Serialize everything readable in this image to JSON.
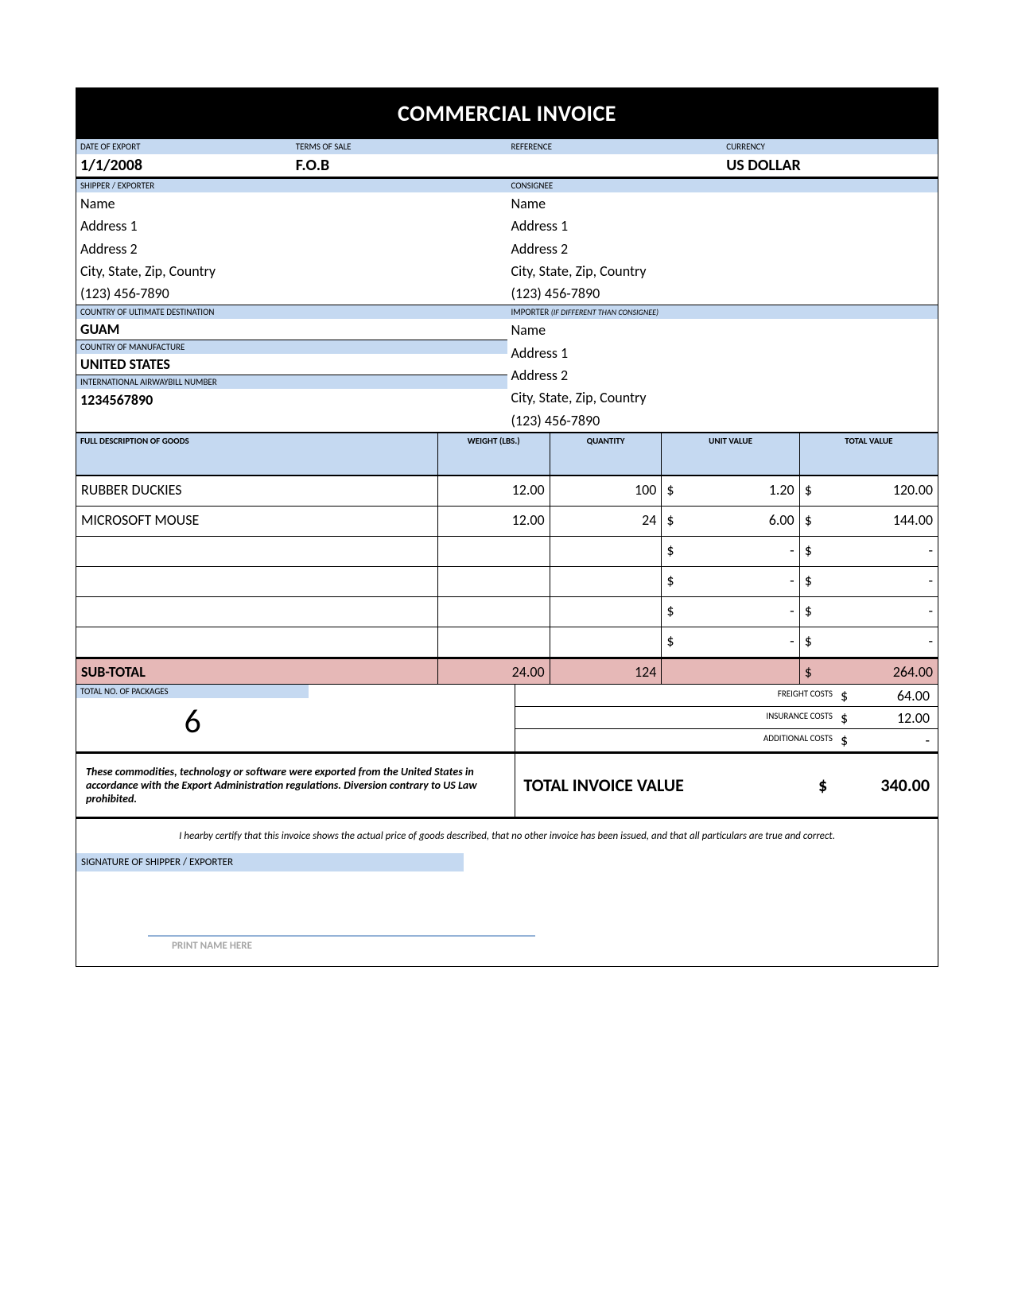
{
  "title": "COMMERCIAL INVOICE",
  "labels": {
    "date_of_export": "DATE OF EXPORT",
    "terms_of_sale": "TERMS OF SALE",
    "reference": "REFERENCE",
    "currency": "CURRENCY",
    "shipper": "SHIPPER / EXPORTER",
    "consignee": "CONSIGNEE",
    "country_destination": "COUNTRY OF ULTIMATE DESTINATION",
    "importer": "IMPORTER",
    "importer_note": "(IF DIFFERENT THAN CONSIGNEE)",
    "country_manufacture": "COUNTRY OF MANUFACTURE",
    "awb": "INTERNATIONAL AIRWAYBILL NUMBER",
    "goods": "FULL DESCRIPTION OF GOODS",
    "weight": "WEIGHT (LBS.)",
    "quantity": "QUANTITY",
    "unit_value": "UNIT VALUE",
    "total_value": "TOTAL VALUE",
    "sub_total": "SUB-TOTAL",
    "packages": "TOTAL NO. OF PACKAGES",
    "freight": "FREIGHT COSTS",
    "insurance": "INSURANCE COSTS",
    "additional": "ADDITIONAL COSTS",
    "total_invoice": "TOTAL INVOICE VALUE",
    "signature": "SIGNATURE OF SHIPPER / EXPORTER",
    "print_name": "PRINT NAME HERE"
  },
  "header": {
    "date_of_export": "1/1/2008",
    "terms_of_sale": "F.O.B",
    "reference": "",
    "currency": "US DOLLAR"
  },
  "shipper": {
    "name": "Name",
    "addr1": "Address 1",
    "addr2": "Address 2",
    "city": "City, State, Zip, Country",
    "phone": "(123) 456-7890"
  },
  "consignee": {
    "name": "Name",
    "addr1": "Address 1",
    "addr2": "Address 2",
    "city": "City, State, Zip, Country",
    "phone": "(123) 456-7890"
  },
  "importer": {
    "name": "Name",
    "addr1": "Address 1",
    "addr2": "Address 2",
    "city": "City, State, Zip, Country",
    "phone": "(123) 456-7890"
  },
  "country_destination": "GUAM",
  "country_manufacture": "UNITED STATES",
  "awb": "1234567890",
  "items": [
    {
      "desc": "RUBBER DUCKIES",
      "weight": "12.00",
      "qty": "100",
      "unit": "1.20",
      "total": "120.00"
    },
    {
      "desc": "MICROSOFT MOUSE",
      "weight": "12.00",
      "qty": "24",
      "unit": "6.00",
      "total": "144.00"
    },
    {
      "desc": "",
      "weight": "",
      "qty": "",
      "unit": "-",
      "total": "-"
    },
    {
      "desc": "",
      "weight": "",
      "qty": "",
      "unit": "-",
      "total": "-"
    },
    {
      "desc": "",
      "weight": "",
      "qty": "",
      "unit": "-",
      "total": "-"
    },
    {
      "desc": "",
      "weight": "",
      "qty": "",
      "unit": "-",
      "total": "-"
    }
  ],
  "subtotal": {
    "weight": "24.00",
    "qty": "124",
    "total": "264.00"
  },
  "packages": "6",
  "costs": {
    "freight": "64.00",
    "insurance": "12.00",
    "additional": "-"
  },
  "currency_symbol": "$",
  "declaration": "These commodities, technology or software were exported from the United States in accordance with the Export Administration regulations.  Diversion contrary to US Law prohibited.",
  "total_invoice": "340.00",
  "certification": "I hearby certify that this invoice shows the actual price of goods described, that no other invoice has been issued, and that all particulars are true and correct.",
  "colors": {
    "header_bg": "#000000",
    "label_bg": "#c5d9f1",
    "subtotal_bg": "#e6b8b7",
    "sig_line": "#95b3d7",
    "print_name": "#a6a6a6"
  }
}
